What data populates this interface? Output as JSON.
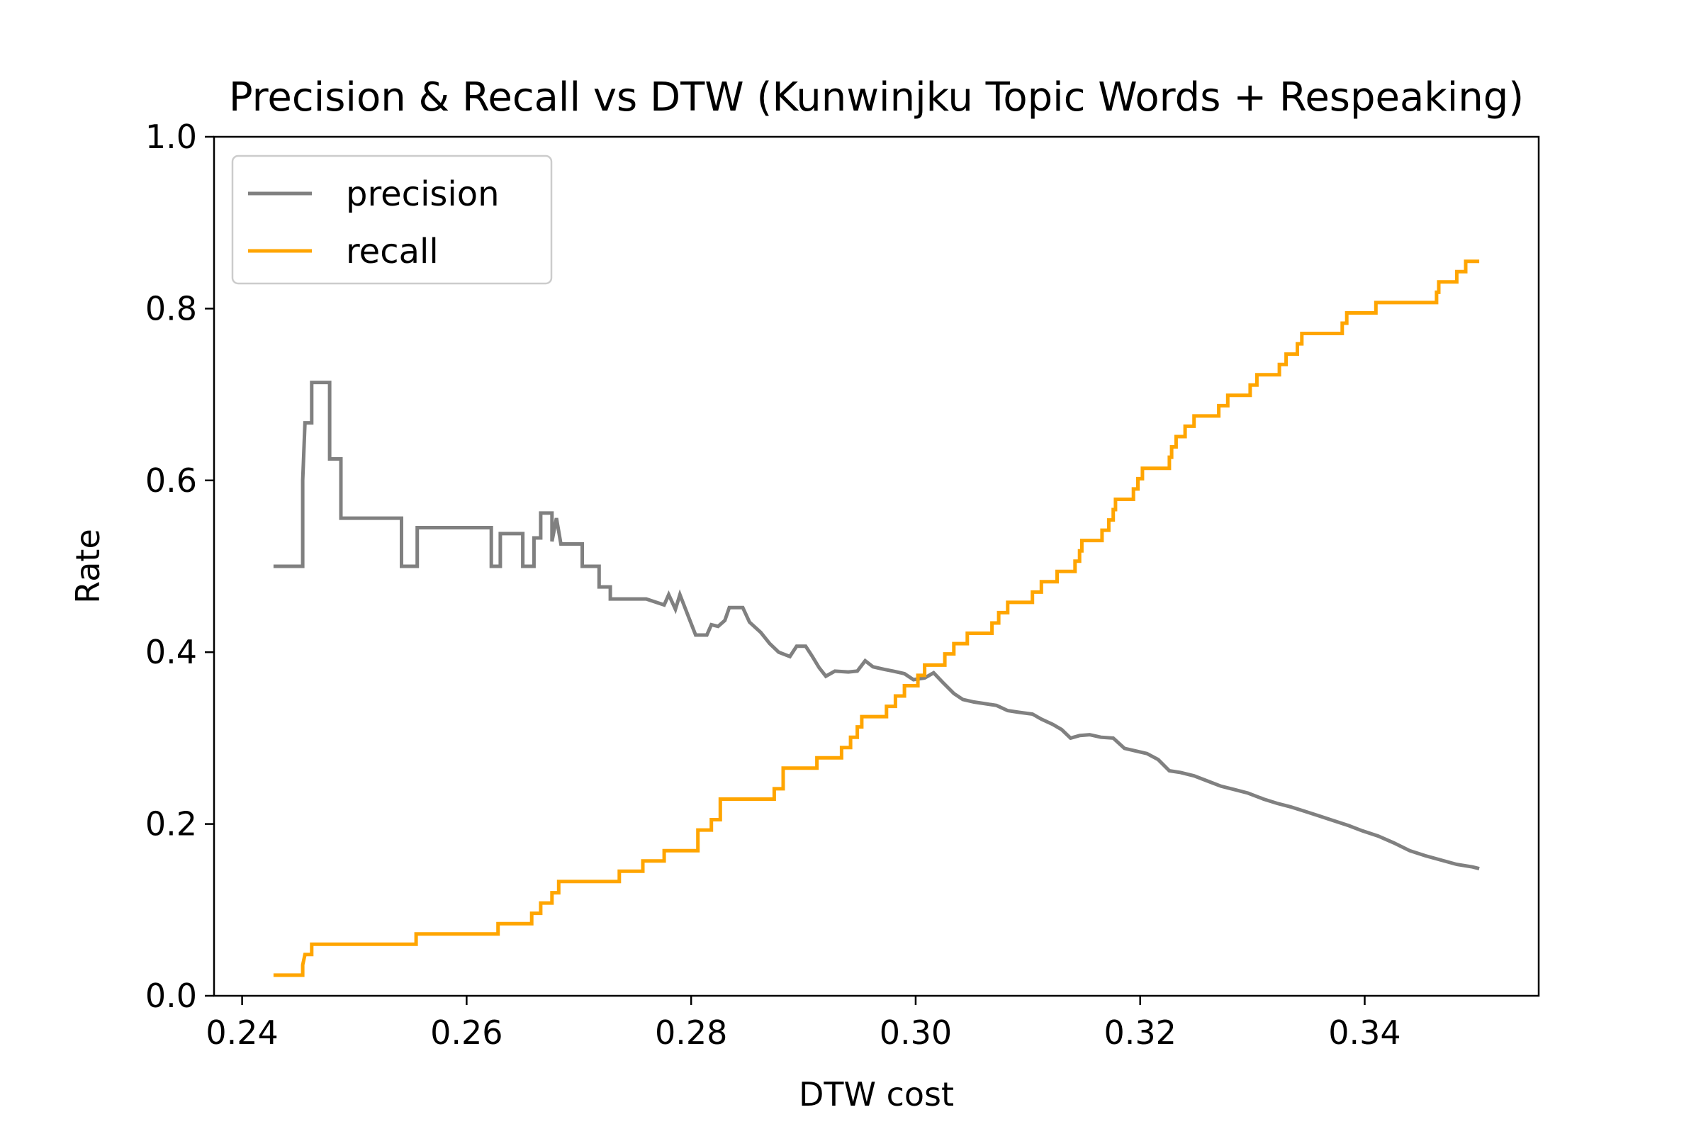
{
  "chart_data": {
    "type": "line",
    "title": "Precision & Recall vs DTW  (Kunwinjku Topic Words + Respeaking)",
    "xlabel": "DTW cost",
    "ylabel": "Rate",
    "xlim": [
      0.2375,
      0.3555
    ],
    "ylim": [
      0.0,
      1.0
    ],
    "xticks": [
      0.24,
      0.26,
      0.28,
      0.3,
      0.32,
      0.34
    ],
    "xtick_labels": [
      "0.24",
      "0.26",
      "0.28",
      "0.30",
      "0.32",
      "0.34"
    ],
    "yticks": [
      0.0,
      0.2,
      0.4,
      0.6,
      0.8,
      1.0
    ],
    "ytick_labels": [
      "0.0",
      "0.2",
      "0.4",
      "0.6",
      "0.8",
      "1.0"
    ],
    "grid": false,
    "legend_position": "top-left",
    "series": [
      {
        "name": "precision",
        "color": "#808080",
        "points": [
          [
            0.2428,
            0.5
          ],
          [
            0.2454,
            0.5
          ],
          [
            0.2454,
            0.6
          ],
          [
            0.2456,
            0.667
          ],
          [
            0.2462,
            0.667
          ],
          [
            0.2462,
            0.714
          ],
          [
            0.2478,
            0.714
          ],
          [
            0.2478,
            0.625
          ],
          [
            0.2488,
            0.625
          ],
          [
            0.2488,
            0.556
          ],
          [
            0.2542,
            0.556
          ],
          [
            0.2542,
            0.5
          ],
          [
            0.2556,
            0.5
          ],
          [
            0.2556,
            0.545
          ],
          [
            0.2622,
            0.545
          ],
          [
            0.2622,
            0.5
          ],
          [
            0.263,
            0.5
          ],
          [
            0.263,
            0.538
          ],
          [
            0.265,
            0.538
          ],
          [
            0.265,
            0.5
          ],
          [
            0.266,
            0.5
          ],
          [
            0.266,
            0.533
          ],
          [
            0.2666,
            0.533
          ],
          [
            0.2666,
            0.562
          ],
          [
            0.2676,
            0.562
          ],
          [
            0.2676,
            0.529
          ],
          [
            0.268,
            0.556
          ],
          [
            0.2684,
            0.526
          ],
          [
            0.2703,
            0.526
          ],
          [
            0.2703,
            0.5
          ],
          [
            0.2718,
            0.5
          ],
          [
            0.2718,
            0.476
          ],
          [
            0.2728,
            0.476
          ],
          [
            0.2728,
            0.462
          ],
          [
            0.2746,
            0.462
          ],
          [
            0.276,
            0.462
          ],
          [
            0.2776,
            0.455
          ],
          [
            0.278,
            0.467
          ],
          [
            0.2786,
            0.45
          ],
          [
            0.279,
            0.467
          ],
          [
            0.2798,
            0.44
          ],
          [
            0.2804,
            0.42
          ],
          [
            0.2814,
            0.42
          ],
          [
            0.2818,
            0.432
          ],
          [
            0.2824,
            0.43
          ],
          [
            0.283,
            0.437
          ],
          [
            0.2834,
            0.452
          ],
          [
            0.2846,
            0.452
          ],
          [
            0.2852,
            0.435
          ],
          [
            0.2862,
            0.423
          ],
          [
            0.287,
            0.41
          ],
          [
            0.2878,
            0.4
          ],
          [
            0.2888,
            0.395
          ],
          [
            0.2894,
            0.407
          ],
          [
            0.2902,
            0.407
          ],
          [
            0.2908,
            0.395
          ],
          [
            0.2914,
            0.382
          ],
          [
            0.292,
            0.372
          ],
          [
            0.2928,
            0.378
          ],
          [
            0.294,
            0.377
          ],
          [
            0.2948,
            0.378
          ],
          [
            0.2955,
            0.39
          ],
          [
            0.2962,
            0.383
          ],
          [
            0.2972,
            0.38
          ],
          [
            0.298,
            0.378
          ],
          [
            0.299,
            0.375
          ],
          [
            0.2998,
            0.368
          ],
          [
            0.3008,
            0.37
          ],
          [
            0.3016,
            0.376
          ],
          [
            0.3024,
            0.365
          ],
          [
            0.3034,
            0.352
          ],
          [
            0.3042,
            0.345
          ],
          [
            0.3052,
            0.342
          ],
          [
            0.3062,
            0.34
          ],
          [
            0.3072,
            0.338
          ],
          [
            0.3082,
            0.332
          ],
          [
            0.3092,
            0.33
          ],
          [
            0.3104,
            0.328
          ],
          [
            0.3112,
            0.322
          ],
          [
            0.3122,
            0.316
          ],
          [
            0.313,
            0.31
          ],
          [
            0.3138,
            0.3
          ],
          [
            0.3146,
            0.303
          ],
          [
            0.3155,
            0.304
          ],
          [
            0.3165,
            0.301
          ],
          [
            0.3176,
            0.3
          ],
          [
            0.3186,
            0.288
          ],
          [
            0.3196,
            0.285
          ],
          [
            0.3206,
            0.282
          ],
          [
            0.3216,
            0.275
          ],
          [
            0.3226,
            0.262
          ],
          [
            0.3236,
            0.26
          ],
          [
            0.3248,
            0.256
          ],
          [
            0.326,
            0.25
          ],
          [
            0.3272,
            0.244
          ],
          [
            0.3284,
            0.24
          ],
          [
            0.3296,
            0.236
          ],
          [
            0.331,
            0.229
          ],
          [
            0.3322,
            0.224
          ],
          [
            0.3334,
            0.22
          ],
          [
            0.3346,
            0.215
          ],
          [
            0.3358,
            0.21
          ],
          [
            0.3372,
            0.204
          ],
          [
            0.3386,
            0.198
          ],
          [
            0.3398,
            0.192
          ],
          [
            0.3412,
            0.186
          ],
          [
            0.3426,
            0.178
          ],
          [
            0.344,
            0.169
          ],
          [
            0.3454,
            0.163
          ],
          [
            0.3468,
            0.158
          ],
          [
            0.3482,
            0.153
          ],
          [
            0.3496,
            0.15
          ],
          [
            0.3502,
            0.148
          ]
        ]
      },
      {
        "name": "recall",
        "color": "#ffa500",
        "points": [
          [
            0.2428,
            0.024
          ],
          [
            0.2454,
            0.024
          ],
          [
            0.2454,
            0.036
          ],
          [
            0.2456,
            0.048
          ],
          [
            0.2462,
            0.048
          ],
          [
            0.2462,
            0.06
          ],
          [
            0.2555,
            0.06
          ],
          [
            0.2555,
            0.072
          ],
          [
            0.2628,
            0.072
          ],
          [
            0.2628,
            0.084
          ],
          [
            0.2658,
            0.084
          ],
          [
            0.2658,
            0.096
          ],
          [
            0.2666,
            0.096
          ],
          [
            0.2666,
            0.108
          ],
          [
            0.2676,
            0.108
          ],
          [
            0.2676,
            0.12
          ],
          [
            0.2682,
            0.12
          ],
          [
            0.2682,
            0.133
          ],
          [
            0.2736,
            0.133
          ],
          [
            0.2736,
            0.145
          ],
          [
            0.2757,
            0.145
          ],
          [
            0.2757,
            0.157
          ],
          [
            0.2776,
            0.157
          ],
          [
            0.2776,
            0.169
          ],
          [
            0.2806,
            0.169
          ],
          [
            0.2806,
            0.193
          ],
          [
            0.2818,
            0.193
          ],
          [
            0.2818,
            0.205
          ],
          [
            0.2826,
            0.205
          ],
          [
            0.2826,
            0.229
          ],
          [
            0.2874,
            0.229
          ],
          [
            0.2874,
            0.241
          ],
          [
            0.2882,
            0.241
          ],
          [
            0.2882,
            0.265
          ],
          [
            0.2912,
            0.265
          ],
          [
            0.2912,
            0.277
          ],
          [
            0.2934,
            0.277
          ],
          [
            0.2934,
            0.289
          ],
          [
            0.2942,
            0.289
          ],
          [
            0.2942,
            0.301
          ],
          [
            0.2948,
            0.301
          ],
          [
            0.2948,
            0.313
          ],
          [
            0.2952,
            0.313
          ],
          [
            0.2952,
            0.325
          ],
          [
            0.2974,
            0.325
          ],
          [
            0.2974,
            0.337
          ],
          [
            0.2982,
            0.337
          ],
          [
            0.2982,
            0.349
          ],
          [
            0.299,
            0.349
          ],
          [
            0.299,
            0.361
          ],
          [
            0.3002,
            0.361
          ],
          [
            0.3002,
            0.373
          ],
          [
            0.3008,
            0.373
          ],
          [
            0.3008,
            0.385
          ],
          [
            0.3026,
            0.385
          ],
          [
            0.3026,
            0.398
          ],
          [
            0.3034,
            0.398
          ],
          [
            0.3034,
            0.41
          ],
          [
            0.3046,
            0.41
          ],
          [
            0.3046,
            0.422
          ],
          [
            0.3068,
            0.422
          ],
          [
            0.3068,
            0.434
          ],
          [
            0.3074,
            0.434
          ],
          [
            0.3074,
            0.446
          ],
          [
            0.3082,
            0.446
          ],
          [
            0.3082,
            0.458
          ],
          [
            0.3104,
            0.458
          ],
          [
            0.3104,
            0.47
          ],
          [
            0.3112,
            0.47
          ],
          [
            0.3112,
            0.482
          ],
          [
            0.3126,
            0.482
          ],
          [
            0.3126,
            0.494
          ],
          [
            0.3142,
            0.494
          ],
          [
            0.3142,
            0.506
          ],
          [
            0.3146,
            0.506
          ],
          [
            0.3146,
            0.518
          ],
          [
            0.3148,
            0.518
          ],
          [
            0.3148,
            0.53
          ],
          [
            0.3166,
            0.53
          ],
          [
            0.3166,
            0.542
          ],
          [
            0.3172,
            0.542
          ],
          [
            0.3172,
            0.554
          ],
          [
            0.3176,
            0.554
          ],
          [
            0.3176,
            0.566
          ],
          [
            0.3178,
            0.566
          ],
          [
            0.3178,
            0.578
          ],
          [
            0.3194,
            0.578
          ],
          [
            0.3194,
            0.59
          ],
          [
            0.3198,
            0.59
          ],
          [
            0.3198,
            0.602
          ],
          [
            0.3202,
            0.602
          ],
          [
            0.3202,
            0.614
          ],
          [
            0.3226,
            0.614
          ],
          [
            0.3226,
            0.627
          ],
          [
            0.3228,
            0.627
          ],
          [
            0.3228,
            0.639
          ],
          [
            0.3232,
            0.639
          ],
          [
            0.3232,
            0.651
          ],
          [
            0.324,
            0.651
          ],
          [
            0.324,
            0.663
          ],
          [
            0.3248,
            0.663
          ],
          [
            0.3248,
            0.675
          ],
          [
            0.327,
            0.675
          ],
          [
            0.327,
            0.687
          ],
          [
            0.3278,
            0.687
          ],
          [
            0.3278,
            0.699
          ],
          [
            0.3298,
            0.699
          ],
          [
            0.3298,
            0.711
          ],
          [
            0.3304,
            0.711
          ],
          [
            0.3304,
            0.723
          ],
          [
            0.3324,
            0.723
          ],
          [
            0.3324,
            0.735
          ],
          [
            0.333,
            0.735
          ],
          [
            0.333,
            0.747
          ],
          [
            0.334,
            0.747
          ],
          [
            0.334,
            0.759
          ],
          [
            0.3344,
            0.759
          ],
          [
            0.3344,
            0.771
          ],
          [
            0.338,
            0.771
          ],
          [
            0.338,
            0.783
          ],
          [
            0.3384,
            0.783
          ],
          [
            0.3384,
            0.795
          ],
          [
            0.341,
            0.795
          ],
          [
            0.341,
            0.807
          ],
          [
            0.3464,
            0.807
          ],
          [
            0.3464,
            0.819
          ],
          [
            0.3466,
            0.819
          ],
          [
            0.3466,
            0.831
          ],
          [
            0.3482,
            0.831
          ],
          [
            0.3482,
            0.843
          ],
          [
            0.349,
            0.843
          ],
          [
            0.349,
            0.855
          ],
          [
            0.3502,
            0.855
          ]
        ]
      }
    ]
  }
}
